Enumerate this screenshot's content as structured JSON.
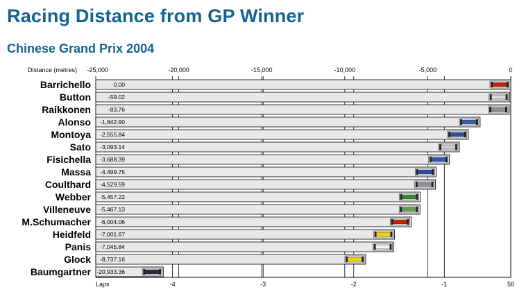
{
  "chart_data": {
    "type": "bar",
    "title": "Racing Distance from GP Winner",
    "subtitle": "Chinese Grand Prix 2004",
    "xlabel": "Distance (metres)",
    "xlim": [
      -25000,
      0
    ],
    "x_ticks": [
      "-25,000",
      "-20,000",
      "-15,000",
      "-10,000",
      "-5,000",
      "0"
    ],
    "x_tick_values": [
      -25000,
      -20000,
      -15000,
      -10000,
      -5000,
      0
    ],
    "laps_label": "Laps",
    "lap_ticks": [
      {
        "label": "-4",
        "value": -20375
      },
      {
        "label": "-3",
        "value": -14916
      },
      {
        "label": "-2",
        "value": -9458
      },
      {
        "label": "-1",
        "value": -4000
      },
      {
        "label": "56",
        "value": 0
      }
    ],
    "categories": [
      "Barrichello",
      "Button",
      "Raikkonen",
      "Alonso",
      "Montoya",
      "Sato",
      "Fisichella",
      "Massa",
      "Coulthard",
      "Webber",
      "Villeneuve",
      "M.Schumacher",
      "Heidfeld",
      "Panis",
      "Glock",
      "Baumgartner"
    ],
    "values": [
      0.0,
      -59.02,
      -83.76,
      -1842.9,
      -2555.84,
      -3093.14,
      -3688.39,
      -4499.75,
      -4529.59,
      -5457.22,
      -5467.13,
      -6004.06,
      -7001.67,
      -7045.84,
      -8737.16,
      -20933.36
    ],
    "value_labels": [
      "0.00",
      "-59.02",
      "-83.76",
      "-1,842.90",
      "-2,555.84",
      "-3,093.14",
      "-3,688.39",
      "-4,499.75",
      "-4,529.59",
      "-5,457.22",
      "-5,467.13",
      "-6,004.06",
      "-7,001.67",
      "-7,045.84",
      "-8,737.16",
      "-20,933.36"
    ],
    "car_colors": [
      "#cc2200",
      "#d8d8d8",
      "#8a8f96",
      "#3a5fb0",
      "#2a4f9a",
      "#d0d0d0",
      "#2b58b8",
      "#2e4f9c",
      "#8a9098",
      "#3a8a3a",
      "#6a9a5a",
      "#cc2200",
      "#f0d400",
      "#f2f2f2",
      "#f0d400",
      "#2a2a3a"
    ],
    "bar_fill": "#e8e8e8",
    "grid": true
  }
}
